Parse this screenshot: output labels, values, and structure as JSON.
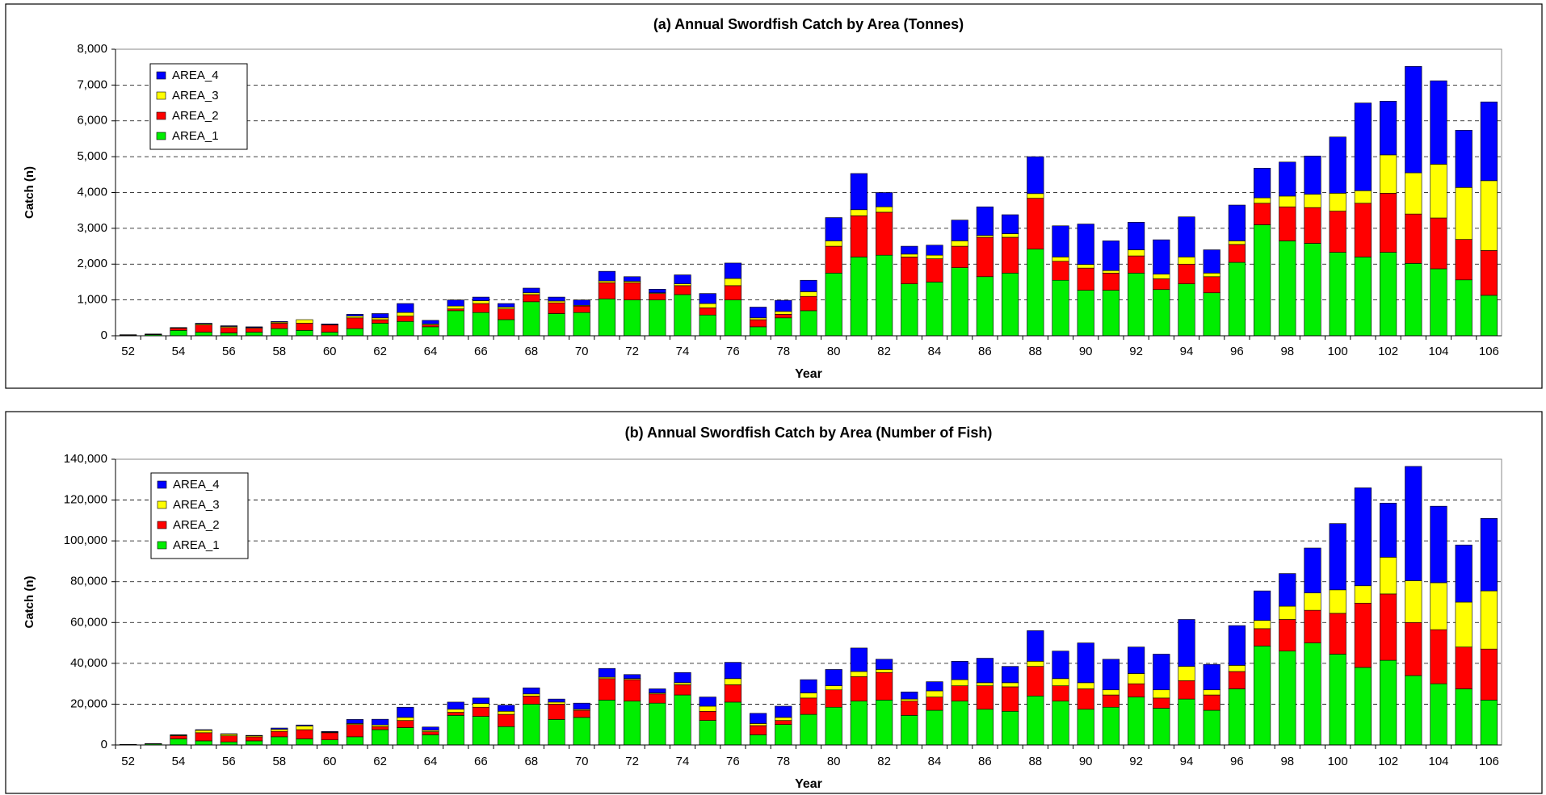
{
  "chart_data": [
    {
      "type": "stacked_bar",
      "title": "(a) Annual Swordfish Catch by Area (Tonnes)",
      "x_label": "Year",
      "y_label": "Catch (n)",
      "categories": [
        52,
        null,
        54,
        null,
        56,
        null,
        58,
        null,
        60,
        null,
        62,
        null,
        64,
        null,
        66,
        null,
        68,
        null,
        70,
        null,
        72,
        null,
        74,
        null,
        76,
        null,
        78,
        null,
        80,
        null,
        82,
        null,
        84,
        null,
        86,
        null,
        88,
        null,
        90,
        null,
        92,
        null,
        94,
        null,
        96,
        null,
        98,
        null,
        100,
        null,
        102,
        null,
        104,
        null,
        106
      ],
      "series": [
        {
          "name": "AREA_1",
          "color": "#00ee00",
          "values": [
            20,
            30,
            150,
            100,
            80,
            100,
            200,
            150,
            100,
            200,
            350,
            400,
            250,
            700,
            650,
            450,
            950,
            620,
            650,
            1030,
            1000,
            1000,
            1150,
            580,
            1000,
            250,
            500,
            700,
            1750,
            2200,
            2250,
            1450,
            1500,
            1900,
            1650,
            1750,
            2420,
            1550,
            1270,
            1270,
            1750,
            1290,
            1450,
            1200,
            2050,
            3100,
            2650,
            2580,
            2330,
            2200,
            2330,
            2020,
            1870,
            1560,
            1130
          ]
        },
        {
          "name": "AREA_2",
          "color": "#ff0000",
          "values": [
            5,
            10,
            60,
            200,
            150,
            110,
            150,
            200,
            200,
            300,
            100,
            150,
            50,
            50,
            250,
            300,
            200,
            300,
            180,
            450,
            480,
            180,
            250,
            200,
            400,
            200,
            100,
            400,
            750,
            1150,
            1200,
            750,
            650,
            600,
            1100,
            1000,
            1420,
            530,
            620,
            480,
            480,
            300,
            550,
            450,
            500,
            600,
            950,
            1000,
            1150,
            1500,
            1650,
            1380,
            1420,
            1130,
            1250
          ]
        },
        {
          "name": "AREA_3",
          "color": "#ffff00",
          "values": [
            0,
            0,
            10,
            30,
            30,
            20,
            30,
            100,
            10,
            50,
            50,
            100,
            30,
            80,
            80,
            50,
            50,
            50,
            20,
            50,
            40,
            20,
            50,
            120,
            200,
            50,
            80,
            130,
            150,
            170,
            150,
            80,
            100,
            150,
            50,
            100,
            130,
            120,
            100,
            70,
            170,
            130,
            200,
            100,
            100,
            150,
            300,
            370,
            500,
            350,
            1070,
            1150,
            1500,
            1450,
            1950
          ]
        },
        {
          "name": "AREA_4",
          "color": "#0000ff",
          "values": [
            5,
            10,
            10,
            20,
            20,
            20,
            20,
            0,
            20,
            50,
            120,
            250,
            100,
            170,
            100,
            100,
            130,
            110,
            150,
            270,
            130,
            100,
            250,
            280,
            430,
            300,
            310,
            320,
            650,
            1010,
            400,
            220,
            280,
            580,
            800,
            530,
            1030,
            870,
            1130,
            830,
            770,
            960,
            1120,
            650,
            1000,
            830,
            950,
            1070,
            1570,
            2450,
            1500,
            2970,
            2330,
            1600,
            2200
          ]
        }
      ],
      "ylim": [
        0,
        8000
      ],
      "yticks": [
        0,
        {
          "value": 1000,
          "label": "1,000"
        },
        {
          "value": 2000,
          "label": "2,000"
        },
        {
          "value": 3000,
          "label": "3,000"
        },
        {
          "value": 4000,
          "label": "4,000"
        },
        {
          "value": 5000,
          "label": "5,000"
        },
        {
          "value": 6000,
          "label": "6,000"
        },
        {
          "value": 7000,
          "label": "7,000"
        },
        {
          "value": 8000,
          "label": "8,000"
        }
      ],
      "grid": true,
      "legend": "upper left"
    },
    {
      "type": "stacked_bar",
      "title": "(b) Annual Swordfish Catch by Area (Number of Fish)",
      "x_label": "Year",
      "y_label": "Catch (n)",
      "categories": [
        52,
        null,
        54,
        null,
        56,
        null,
        58,
        null,
        60,
        null,
        62,
        null,
        64,
        null,
        66,
        null,
        68,
        null,
        70,
        null,
        72,
        null,
        74,
        null,
        76,
        null,
        78,
        null,
        80,
        null,
        82,
        null,
        84,
        null,
        86,
        null,
        88,
        null,
        90,
        null,
        92,
        null,
        94,
        null,
        96,
        null,
        98,
        null,
        100,
        null,
        102,
        null,
        104,
        null,
        106
      ],
      "series": [
        {
          "name": "AREA_1",
          "color": "#00ee00",
          "values": [
            200,
            500,
            3000,
            2000,
            1500,
            2000,
            4000,
            3000,
            2500,
            4000,
            7500,
            8500,
            5000,
            14500,
            14000,
            9000,
            20000,
            12500,
            13500,
            22000,
            21500,
            20500,
            24500,
            12000,
            21000,
            5000,
            10000,
            15000,
            18500,
            21500,
            22000,
            14500,
            17000,
            21500,
            17500,
            16500,
            24000,
            21500,
            17500,
            18500,
            23500,
            18000,
            22500,
            17000,
            27500,
            48500,
            46000,
            50000,
            44500,
            38000,
            41500,
            34000,
            30000,
            27500,
            22000
          ]
        },
        {
          "name": "AREA_2",
          "color": "#ff0000",
          "values": [
            50,
            100,
            1500,
            4000,
            3000,
            2000,
            2700,
            4500,
            3500,
            6000,
            1500,
            3500,
            1500,
            1500,
            4500,
            6000,
            4000,
            7500,
            3500,
            10500,
            10500,
            4500,
            5000,
            4500,
            8500,
            4500,
            2000,
            8000,
            8500,
            12000,
            13500,
            7000,
            6500,
            7500,
            11500,
            12000,
            14500,
            7500,
            10000,
            6000,
            6500,
            5000,
            9000,
            7500,
            8500,
            8500,
            15500,
            16000,
            20000,
            31500,
            32500,
            26000,
            26500,
            20500,
            25000
          ]
        },
        {
          "name": "AREA_3",
          "color": "#ffff00",
          "values": [
            0,
            0,
            300,
            1200,
            800,
            500,
            1000,
            1800,
            300,
            500,
            800,
            1500,
            700,
            1500,
            1800,
            1500,
            1000,
            1000,
            500,
            700,
            500,
            500,
            1000,
            2500,
            3000,
            1000,
            1500,
            2500,
            2000,
            2500,
            1500,
            1000,
            3000,
            3000,
            1500,
            2000,
            2500,
            3500,
            3000,
            2500,
            5000,
            4000,
            7000,
            2500,
            3000,
            4000,
            6500,
            8500,
            11500,
            8500,
            18000,
            20500,
            23000,
            22000,
            28500
          ]
        },
        {
          "name": "AREA_4",
          "color": "#0000ff",
          "values": [
            50,
            100,
            200,
            300,
            200,
            200,
            600,
            500,
            300,
            2000,
            2800,
            5000,
            1600,
            3500,
            2700,
            3000,
            3000,
            1500,
            3000,
            4300,
            2000,
            2000,
            5000,
            4500,
            8000,
            5000,
            5500,
            6500,
            8000,
            11500,
            5000,
            3500,
            4500,
            9000,
            12000,
            8000,
            15000,
            13500,
            19500,
            15000,
            13000,
            17500,
            23000,
            12500,
            19500,
            14500,
            16000,
            22000,
            32500,
            48000,
            26500,
            56000,
            37500,
            28000,
            35500
          ]
        }
      ],
      "ylim": [
        0,
        140000
      ],
      "yticks": [
        0,
        {
          "value": 20000,
          "label": "20,000"
        },
        {
          "value": 40000,
          "label": "40,000"
        },
        {
          "value": 60000,
          "label": "60,000"
        },
        {
          "value": 80000,
          "label": "80,000"
        },
        {
          "value": 100000,
          "label": "100,000"
        },
        {
          "value": 120000,
          "label": "120,000"
        },
        {
          "value": 140000,
          "label": "140,000"
        }
      ],
      "grid": true,
      "legend": "upper left"
    }
  ]
}
